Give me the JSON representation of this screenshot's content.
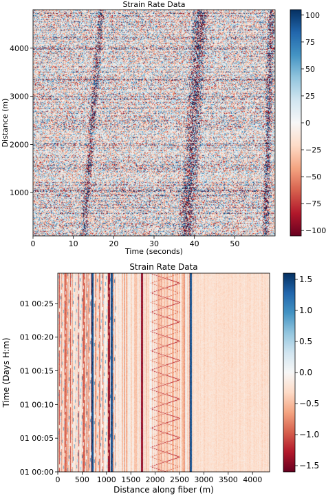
{
  "chart_data": [
    {
      "type": "heatmap",
      "title": "Strain Rate Data",
      "xlabel": "Time (seconds)",
      "ylabel": "Distance (m)",
      "xlim": [
        0,
        60
      ],
      "ylim": [
        100,
        4800
      ],
      "x_ticks": [
        0,
        10,
        20,
        30,
        40,
        50
      ],
      "y_ticks": [
        1000,
        2000,
        3000,
        4000
      ],
      "colorbar": {
        "vmin": -105,
        "vmax": 105,
        "ticks": [
          100,
          75,
          50,
          25,
          0,
          -25,
          -50,
          -75,
          -100
        ],
        "colormap": "RdBu"
      },
      "features": {
        "arrival_tracks": [
          {
            "x_top": 16.8,
            "x_bottom": 12.5
          },
          {
            "x_top": 41.5,
            "x_bottom": 38.0
          },
          {
            "x_top": 59.0,
            "x_bottom": 57.5
          }
        ],
        "horizontal_band_distances": [
          1050,
          1500,
          2000,
          2950,
          3350,
          4000
        ]
      }
    },
    {
      "type": "heatmap",
      "title": "Strain Rate Data",
      "xlabel": "Distance along fiber (m)",
      "ylabel": "Time (Days H:m)",
      "xlim": [
        0,
        4350
      ],
      "x_ticks": [
        0,
        500,
        1000,
        1500,
        2000,
        2500,
        3000,
        3500,
        4000
      ],
      "y_ticks": [
        "01 00:00",
        "01 00:05",
        "01 00:10",
        "01 00:15",
        "01 00:20",
        "01 00:25"
      ],
      "ylim_minutes": [
        0,
        29.5
      ],
      "colorbar": {
        "vmin": -1.6,
        "vmax": 1.6,
        "ticks": [
          1.5,
          1.0,
          0.5,
          0.0,
          -0.5,
          -1.0,
          -1.5
        ],
        "colormap": "RdBu"
      },
      "features": {
        "strong_columns_m": [
          700,
          1050,
          1100,
          1720,
          2730
        ],
        "zigzag_region_m": [
          1900,
          2500
        ]
      }
    }
  ],
  "colors": {
    "dark_red": "#67001f",
    "red": "#d6604d",
    "light_red": "#fbd3c0",
    "white": "#f7f7f7",
    "light_blue": "#c7e0ee",
    "blue": "#4393c3",
    "dark_blue": "#053061"
  }
}
